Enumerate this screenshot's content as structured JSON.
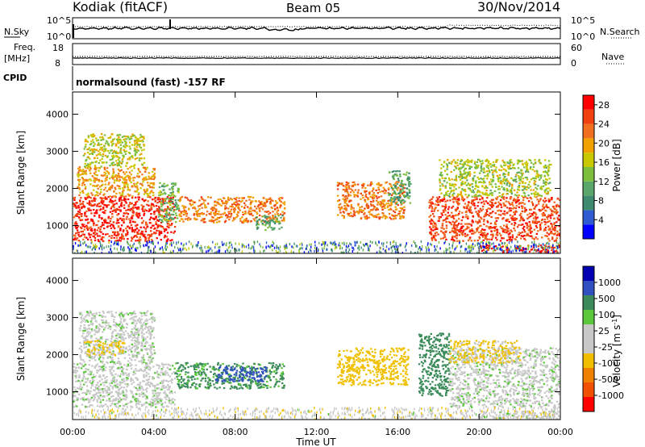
{
  "header": {
    "station": "Kodiak (fitACF)",
    "beam": "Beam 05",
    "date": "30/Nov/2014"
  },
  "noise_panel": {
    "left_label": "N.Sky",
    "right_label": "N.Search",
    "left_ticks": [
      "10^5",
      "10^0"
    ],
    "right_ticks": [
      "10^5",
      "10^0"
    ]
  },
  "freq_panel": {
    "left_label_1": "Freq.",
    "left_label_2": "[MHz]",
    "right_label": "Nave",
    "left_ticks": [
      "18",
      "8"
    ],
    "right_ticks": [
      "60",
      "0"
    ]
  },
  "cpid": {
    "label": "CPID",
    "text": "normalsound (fast) -157 RF"
  },
  "colors": {
    "power_scale": [
      "#0000ff",
      "#2e5bd1",
      "#3d8a6e",
      "#5aa66a",
      "#7bbf3d",
      "#c8c800",
      "#f0a000",
      "#f07020",
      "#f04010",
      "#ff0000"
    ],
    "velocity_scale": [
      "#0000b0",
      "#3050c0",
      "#3a8a5a",
      "#5ac83a",
      "#c8c8c8",
      "#c8c8c8",
      "#f0c000",
      "#f08000",
      "#f05000",
      "#ff0000"
    ]
  },
  "chart_data": [
    {
      "type": "heatmap",
      "name": "power",
      "ylabel": "Slant Range [km]",
      "y_ticks": [
        1000,
        2000,
        3000,
        4000
      ],
      "ylim": [
        250,
        4600
      ],
      "colorbar_label": "Power [dB]",
      "colorbar_ticks": [
        4,
        8,
        12,
        16,
        20,
        24,
        28
      ],
      "colorbar_range": [
        0,
        30
      ],
      "x_ticks": [
        "00:00",
        "04:00",
        "08:00",
        "12:00",
        "16:00",
        "20:00",
        "00:00"
      ],
      "bands": [
        {
          "t0": 0.0,
          "t1": 5.0,
          "r0": 600,
          "r1": 1800,
          "v": 27
        },
        {
          "t0": 0.2,
          "t1": 4.0,
          "r0": 1800,
          "r1": 2600,
          "v": 20
        },
        {
          "t0": 0.5,
          "t1": 3.5,
          "r0": 2600,
          "r1": 3500,
          "v": 16
        },
        {
          "t0": 4.2,
          "t1": 5.2,
          "r0": 1100,
          "r1": 2200,
          "v": 12
        },
        {
          "t0": 5.2,
          "t1": 10.4,
          "r0": 1100,
          "r1": 1800,
          "v": 22
        },
        {
          "t0": 9.0,
          "t1": 10.3,
          "r0": 900,
          "r1": 1300,
          "v": 10
        },
        {
          "t0": 13.0,
          "t1": 16.3,
          "r0": 1200,
          "r1": 2200,
          "v": 22
        },
        {
          "t0": 15.5,
          "t1": 16.6,
          "r0": 1600,
          "r1": 2500,
          "v": 10
        },
        {
          "t0": 17.5,
          "t1": 24.0,
          "r0": 600,
          "r1": 1800,
          "v": 25
        },
        {
          "t0": 18.0,
          "t1": 23.5,
          "r0": 1800,
          "r1": 2800,
          "v": 15
        },
        {
          "t0": 20.0,
          "t1": 24.0,
          "r0": 300,
          "r1": 500,
          "v": 29
        }
      ],
      "scatter_ranges": [
        {
          "t0": 0.0,
          "t1": 24.0,
          "r0": 280,
          "r1": 600,
          "v": 8
        }
      ]
    },
    {
      "type": "heatmap",
      "name": "velocity",
      "ylabel": "Slant Range [km]",
      "y_ticks": [
        1000,
        2000,
        3000,
        4000
      ],
      "ylim": [
        250,
        4600
      ],
      "colorbar_label": "Velocity [m s^-1]",
      "colorbar_ticks": [
        1000,
        500,
        100,
        25,
        -25,
        -100,
        -500,
        -1000
      ],
      "xlabel": "Time UT",
      "x_ticks": [
        "00:00",
        "04:00",
        "08:00",
        "12:00",
        "16:00",
        "20:00",
        "00:00"
      ],
      "bands": [
        {
          "t0": 0.0,
          "t1": 5.0,
          "r0": 600,
          "r1": 1800,
          "v": 0
        },
        {
          "t0": 0.3,
          "t1": 4.0,
          "r0": 1800,
          "r1": 3200,
          "v": 0
        },
        {
          "t0": 0.5,
          "t1": 2.5,
          "r0": 2000,
          "r1": 2400,
          "v": -120
        },
        {
          "t0": 5.0,
          "t1": 10.4,
          "r0": 1100,
          "r1": 1800,
          "v": 120
        },
        {
          "t0": 7.0,
          "t1": 9.5,
          "r0": 1300,
          "r1": 1700,
          "v": 600
        },
        {
          "t0": 13.0,
          "t1": 16.5,
          "r0": 1200,
          "r1": 2200,
          "v": -200
        },
        {
          "t0": 17.0,
          "t1": 18.5,
          "r0": 900,
          "r1": 2600,
          "v": 150
        },
        {
          "t0": 18.5,
          "t1": 24.0,
          "r0": 600,
          "r1": 2200,
          "v": 0
        },
        {
          "t0": 18.5,
          "t1": 22.0,
          "r0": 1800,
          "r1": 2400,
          "v": -120
        },
        {
          "t0": 20.0,
          "t1": 24.0,
          "r0": 300,
          "r1": 500,
          "v": 0
        }
      ],
      "scatter_ranges": [
        {
          "t0": 0.0,
          "t1": 24.0,
          "r0": 280,
          "r1": 600,
          "v": -50
        }
      ]
    }
  ]
}
